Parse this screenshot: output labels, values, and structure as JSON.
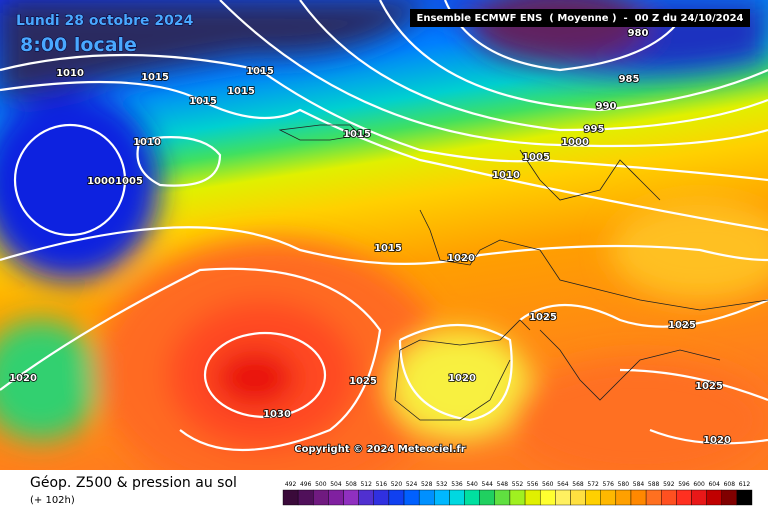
{
  "header": {
    "date": "Lundi 28 octobre 2024",
    "time": "8:00 locale",
    "model": "Ensemble ECMWF ENS  ( Moyenne )  -  00 Z du 24/10/2024"
  },
  "isobar_labels": [
    "980",
    "985",
    "990",
    "995",
    "1000",
    "1005",
    "1010",
    "1010",
    "1015",
    "1015",
    "1015",
    "1015",
    "1010",
    "1015",
    "1000",
    "1005",
    "1015",
    "1020",
    "1025",
    "1025",
    "1025",
    "1020",
    "1030",
    "1025",
    "1020",
    "1020"
  ],
  "copyright": "Copyright © 2024 Meteociel.fr",
  "footer": {
    "title": "Géop. Z500 & pression au sol",
    "subtitle": "(+ 102h)"
  },
  "legend": {
    "labels": [
      "492",
      "496",
      "500",
      "504",
      "508",
      "512",
      "516",
      "520",
      "524",
      "528",
      "532",
      "536",
      "540",
      "544",
      "548",
      "552",
      "556",
      "560",
      "564",
      "568",
      "572",
      "576",
      "580",
      "584",
      "588",
      "592",
      "596",
      "600",
      "604",
      "608",
      "612"
    ],
    "colors": [
      "#3a0a3a",
      "#50105a",
      "#701a80",
      "#8020a0",
      "#9030c0",
      "#5030d0",
      "#3030e0",
      "#1040f0",
      "#0060ff",
      "#0090ff",
      "#00b8ff",
      "#00d8e0",
      "#00e0a0",
      "#20d060",
      "#60e040",
      "#a0f020",
      "#e0f000",
      "#ffff30",
      "#fff060",
      "#ffe040",
      "#ffd000",
      "#ffb800",
      "#ffa000",
      "#ff8800",
      "#ff7020",
      "#ff5020",
      "#ff3020",
      "#e81818",
      "#c00000",
      "#800000",
      "#000000"
    ]
  }
}
